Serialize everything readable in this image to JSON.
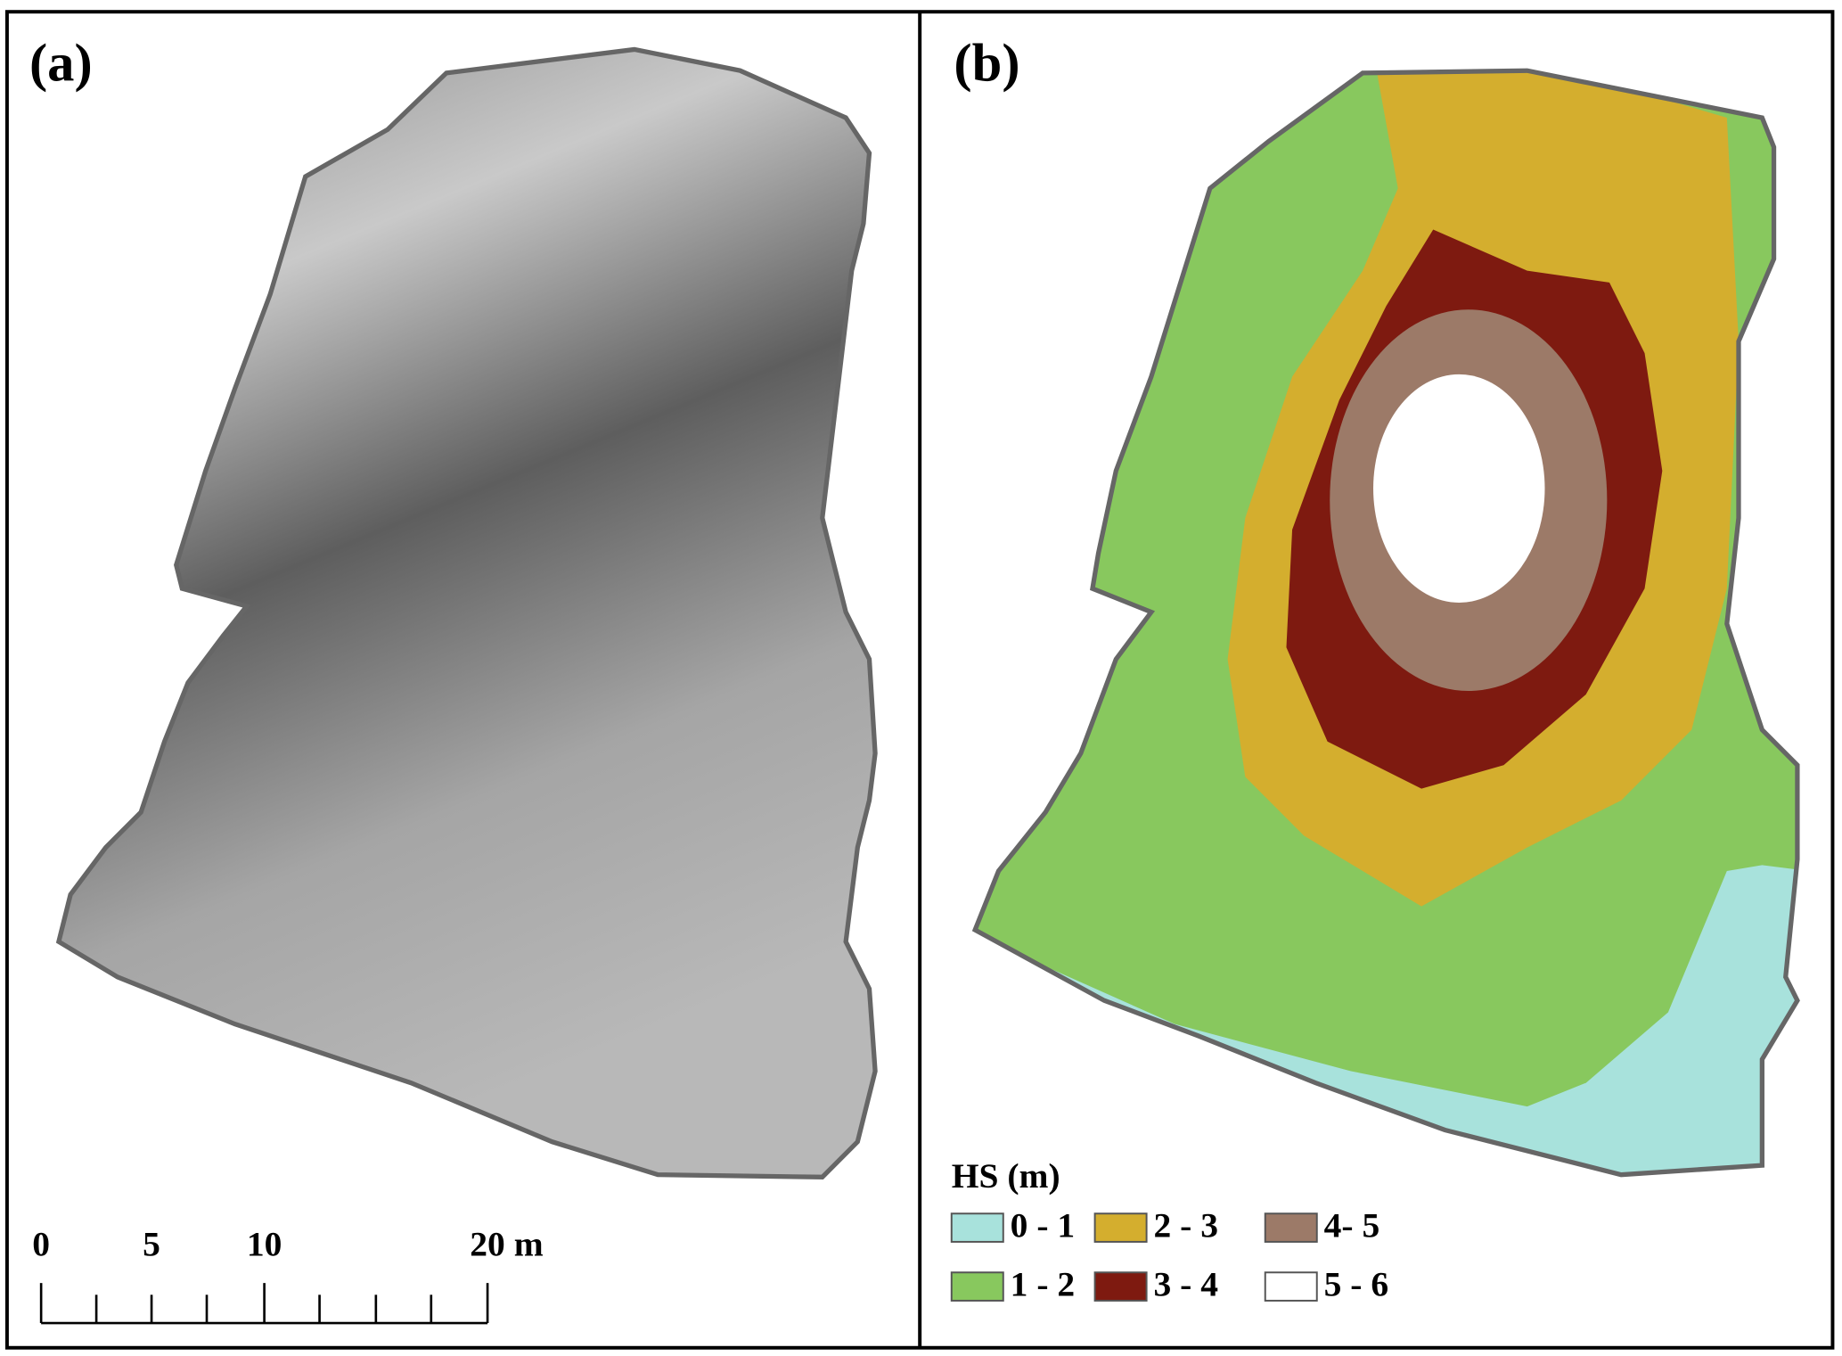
{
  "panels": [
    {
      "label": "(a)"
    },
    {
      "label": "(b)"
    }
  ],
  "scale_bar": {
    "labels": [
      "0",
      "5",
      "10",
      "20 m"
    ]
  },
  "legend": {
    "title": "HS (m)",
    "items": [
      {
        "label": "0 - 1",
        "color": "#a8e2dc"
      },
      {
        "label": "1 - 2",
        "color": "#88c85e"
      },
      {
        "label": "2 - 3",
        "color": "#d4ae2e"
      },
      {
        "label": "3 - 4",
        "color": "#7e1a10"
      },
      {
        "label": "4- 5",
        "color": "#9c7a68"
      },
      {
        "label": "5 - 6",
        "color": "#ffffff"
      }
    ]
  }
}
